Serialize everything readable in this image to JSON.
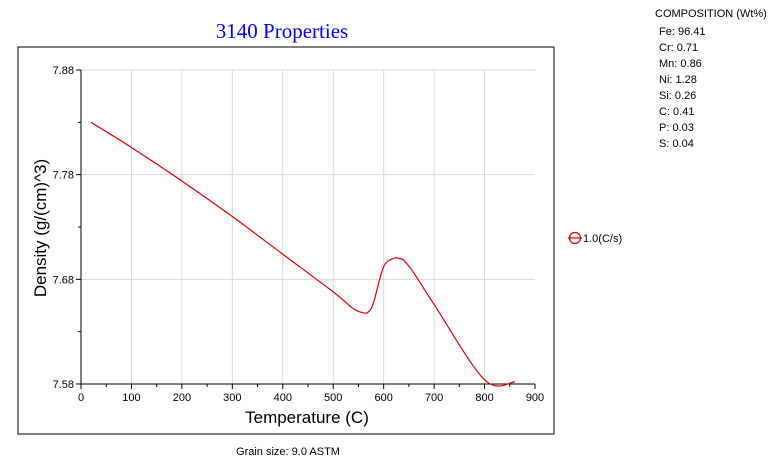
{
  "composition": {
    "title": "COMPOSITION (Wt%)",
    "items": [
      "Fe: 96.41",
      "Cr: 0.71",
      "Mn: 0.86",
      "Ni: 1.28",
      "Si: 0.26",
      "C: 0.41",
      "P: 0.03",
      "S: 0.04"
    ]
  },
  "footnote": "Grain size: 9.0 ASTM",
  "colors": {
    "title": "#0000ff",
    "series": "#e00000",
    "grid": "#d8d8d8"
  },
  "chart_data": {
    "type": "line",
    "title": "3140 Properties",
    "xlabel": "Temperature (C)",
    "ylabel": "Density (g/(cm)^3)",
    "xlim": [
      0,
      900
    ],
    "ylim": [
      7.58,
      7.88
    ],
    "x_ticks": [
      "0",
      "100",
      "200",
      "300",
      "400",
      "500",
      "600",
      "700",
      "800",
      "900"
    ],
    "y_ticks": [
      "7.58",
      "7.68",
      "7.78",
      "7.88"
    ],
    "grid": true,
    "legend_position": "right",
    "series": [
      {
        "name": "1.0(C/s)",
        "color": "#e00000",
        "x": [
          20,
          100,
          200,
          300,
          400,
          500,
          540,
          560,
          570,
          580,
          600,
          620,
          630,
          640,
          660,
          700,
          800,
          860
        ],
        "y": [
          7.83,
          7.806,
          7.774,
          7.74,
          7.704,
          7.668,
          7.652,
          7.648,
          7.649,
          7.658,
          7.692,
          7.7,
          7.7,
          7.698,
          7.686,
          7.656,
          7.584,
          7.582
        ]
      }
    ]
  }
}
